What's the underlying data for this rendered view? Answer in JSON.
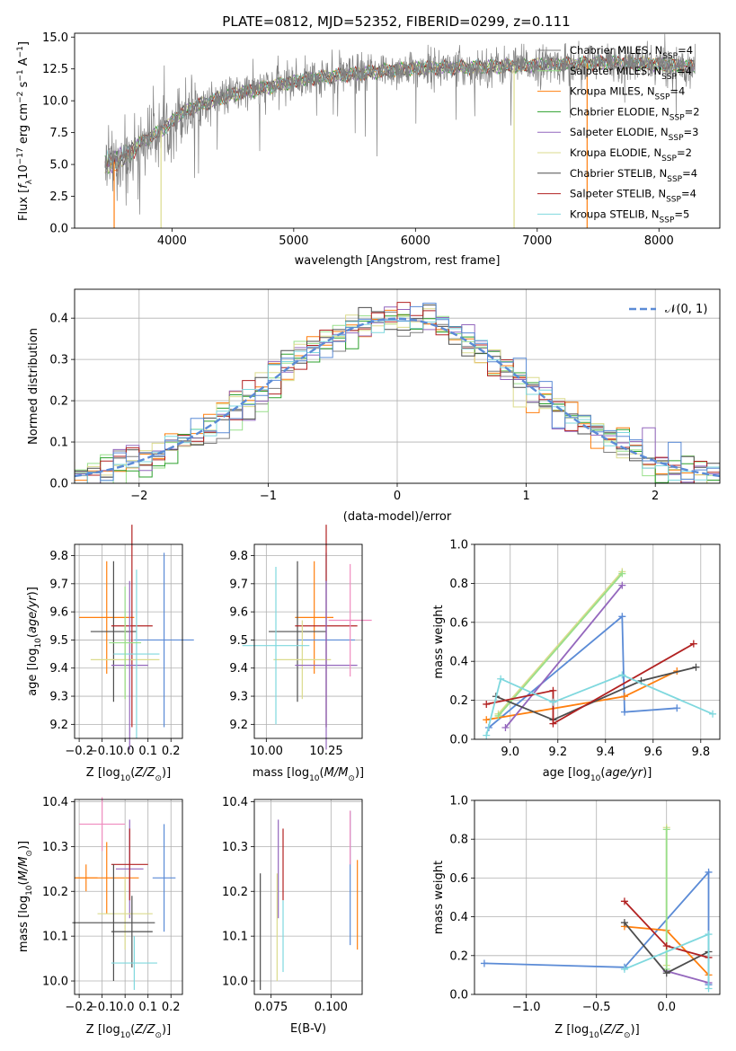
{
  "figure": {
    "title": "PLATE=0812, MJD=52352, FIBERID=0299, z=0.111"
  },
  "colors": {
    "chabrier_miles": "#7f7f7f",
    "salpeter_miles": "#98df8a",
    "kroupa_miles": "#ff7f0e",
    "chabrier_elodie": "#2ca02c",
    "salpeter_elodie": "#9467bd",
    "kroupa_elodie": "#dbdb8d",
    "chabrier_stelib": "#4d4d4d",
    "salpeter_stelib": "#b22222",
    "kroupa_stelib": "#7fd8de",
    "blue": "#5b8bd6",
    "pink": "#f08cbf",
    "normal": "#5b8bd6"
  },
  "chart_data": [
    {
      "id": "spectrum",
      "type": "line",
      "xlabel": "wavelength [Angstrom, rest frame]",
      "ylabel": "Flux [f_λ 10^-17 erg cm^-2 s^-1 A^-1]",
      "xlim": [
        3200,
        8500
      ],
      "ylim": [
        0,
        15.3
      ],
      "xticks": [
        4000,
        5000,
        6000,
        7000,
        8000
      ],
      "yticks": [
        0.0,
        2.5,
        5.0,
        7.5,
        10.0,
        12.5,
        15.0
      ],
      "grid": false,
      "legend_position": "top-right",
      "legend": [
        {
          "label": "Chabrier MILES, NSSP=4",
          "color": "#7f7f7f"
        },
        {
          "label": "Salpeter MILES, NSSP=4",
          "color": "#98df8a"
        },
        {
          "label": "Kroupa MILES, NSSP=4",
          "color": "#ff7f0e"
        },
        {
          "label": "Chabrier ELODIE, NSSP=2",
          "color": "#2ca02c"
        },
        {
          "label": "Salpeter ELODIE, NSSP=3",
          "color": "#9467bd"
        },
        {
          "label": "Kroupa ELODIE, NSSP=2",
          "color": "#dbdb8d"
        },
        {
          "label": "Chabrier STELIB, NSSP=4",
          "color": "#4d4d4d"
        },
        {
          "label": "Salpeter STELIB, NSSP=4",
          "color": "#b22222"
        },
        {
          "label": "Kroupa STELIB, NSSP=5",
          "color": "#7fd8de"
        }
      ],
      "continuum": {
        "x": [
          3450,
          3550,
          3650,
          3750,
          3850,
          3950,
          4050,
          4150,
          4300,
          4500,
          4700,
          4900,
          5100,
          5300,
          5500,
          5800,
          6100,
          6400,
          6700,
          7000,
          7300,
          7600,
          7900,
          8200
        ],
        "y": [
          4.9,
          5.3,
          5.8,
          6.8,
          7.3,
          7.9,
          8.8,
          9.4,
          9.9,
          10.5,
          10.9,
          11.3,
          11.7,
          11.9,
          12.1,
          12.4,
          12.6,
          12.6,
          12.7,
          12.8,
          12.9,
          13.0,
          12.9,
          12.7
        ]
      },
      "absorption_spikes": [
        {
          "x": 3525,
          "y": 0,
          "color": "#ff7f0e"
        },
        {
          "x": 3910,
          "y": 0,
          "color": "#dbdb8d"
        },
        {
          "x": 6810,
          "y": 0,
          "color": "#dbdb8d"
        },
        {
          "x": 7410,
          "y": 0,
          "color": "#ff7f0e"
        }
      ]
    },
    {
      "id": "residuals",
      "type": "histogram",
      "xlabel": "(data-model)/error",
      "ylabel": "Normed distribution",
      "xlim": [
        -2.5,
        2.5
      ],
      "ylim": [
        0,
        0.47
      ],
      "xticks": [
        -2,
        -1,
        0,
        1,
        2
      ],
      "yticks": [
        0.0,
        0.1,
        0.2,
        0.3,
        0.4
      ],
      "grid": true,
      "bin_width": 0.1,
      "legend_position": "top-right",
      "legend": [
        {
          "label": "𝒩(0, 1)",
          "color": "#5b8bd6",
          "style": "dashed"
        }
      ],
      "series_colors": [
        "#7f7f7f",
        "#98df8a",
        "#ff7f0e",
        "#2ca02c",
        "#9467bd",
        "#dbdb8d",
        "#4d4d4d",
        "#b22222",
        "#7fd8de",
        "#5b8bd6"
      ]
    },
    {
      "id": "age_vs_Z",
      "type": "errorbar",
      "xlabel": "Z [log10(Z/Z⊙)]",
      "ylabel": "age  [log10(age/yr)]",
      "xlim": [
        -0.22,
        0.25
      ],
      "ylim": [
        9.15,
        9.84
      ],
      "xticks": [
        -0.2,
        -0.1,
        0.0,
        0.1,
        0.2
      ],
      "yticks": [
        9.2,
        9.3,
        9.4,
        9.5,
        9.6,
        9.7,
        9.8
      ],
      "grid": true,
      "points": [
        {
          "x": -0.08,
          "xerr": 0.12,
          "y": 9.58,
          "yerr": 0.2,
          "color": "#ff7f0e"
        },
        {
          "x": 0.17,
          "xerr": 0.13,
          "y": 9.5,
          "yerr": 0.31,
          "color": "#5b8bd6"
        },
        {
          "x": -0.05,
          "xerr": 0.1,
          "y": 9.53,
          "yerr": 0.25,
          "color": "#4d4d4d"
        },
        {
          "x": 0.03,
          "xerr": 0.09,
          "y": 9.55,
          "yerr": 0.36,
          "color": "#b22222"
        },
        {
          "x": 0.0,
          "xerr": 0.15,
          "y": 9.43,
          "yerr": 0.14,
          "color": "#dbdb8d"
        },
        {
          "x": 0.02,
          "xerr": 0.08,
          "y": 9.41,
          "yerr": 0.3,
          "color": "#9467bd"
        },
        {
          "x": 0.05,
          "xerr": 0.1,
          "y": 9.45,
          "yerr": 0.3,
          "color": "#7fd8de"
        },
        {
          "x": 0.0,
          "xerr": 0.07,
          "y": 9.49,
          "yerr": 0.2,
          "color": "#98df8a"
        }
      ]
    },
    {
      "id": "age_vs_mass",
      "type": "errorbar",
      "xlabel": "mass [log10(M/M⊙)]",
      "ylabel": "",
      "xlim": [
        9.95,
        10.4
      ],
      "ylim": [
        9.15,
        9.84
      ],
      "xticks": [
        10.0,
        10.25
      ],
      "yticks": [
        9.2,
        9.3,
        9.4,
        9.5,
        9.6,
        9.7,
        9.8
      ],
      "grid": true,
      "points": [
        {
          "x": 10.2,
          "xerr": 0.08,
          "y": 9.58,
          "yerr": 0.2,
          "color": "#ff7f0e"
        },
        {
          "x": 10.25,
          "xerr": 0.12,
          "y": 9.5,
          "yerr": 0.31,
          "color": "#5b8bd6"
        },
        {
          "x": 10.13,
          "xerr": 0.12,
          "y": 9.53,
          "yerr": 0.25,
          "color": "#4d4d4d"
        },
        {
          "x": 10.25,
          "xerr": 0.13,
          "y": 9.55,
          "yerr": 0.36,
          "color": "#b22222"
        },
        {
          "x": 10.15,
          "xerr": 0.12,
          "y": 9.43,
          "yerr": 0.14,
          "color": "#dbdb8d"
        },
        {
          "x": 10.25,
          "xerr": 0.13,
          "y": 9.41,
          "yerr": 0.3,
          "color": "#9467bd"
        },
        {
          "x": 10.04,
          "xerr": 0.14,
          "y": 9.48,
          "yerr": 0.28,
          "color": "#7fd8de"
        },
        {
          "x": 10.35,
          "xerr": 0.09,
          "y": 9.57,
          "yerr": 0.2,
          "color": "#f08cbf"
        }
      ]
    },
    {
      "id": "weight_vs_age",
      "type": "line",
      "xlabel": "age  [log10(age/yr)]",
      "ylabel": "mass weight",
      "xlim": [
        8.85,
        9.88
      ],
      "ylim": [
        0,
        1.0
      ],
      "xticks": [
        9.0,
        9.2,
        9.4,
        9.6,
        9.8
      ],
      "yticks": [
        0.0,
        0.2,
        0.4,
        0.6,
        0.8,
        1.0
      ],
      "grid": true,
      "series": [
        {
          "color": "#5b8bd6",
          "x": [
            8.91,
            9.47,
            9.48,
            9.7
          ],
          "y": [
            0.06,
            0.63,
            0.14,
            0.16
          ]
        },
        {
          "color": "#ff7f0e",
          "x": [
            8.9,
            9.48,
            9.7
          ],
          "y": [
            0.1,
            0.22,
            0.35
          ]
        },
        {
          "color": "#9467bd",
          "x": [
            8.98,
            9.47
          ],
          "y": [
            0.06,
            0.79
          ]
        },
        {
          "color": "#dbdb8d",
          "x": [
            8.95,
            9.47
          ],
          "y": [
            0.13,
            0.86
          ]
        },
        {
          "color": "#98df8a",
          "x": [
            8.95,
            9.47
          ],
          "y": [
            0.12,
            0.85
          ]
        },
        {
          "color": "#4d4d4d",
          "x": [
            8.94,
            9.18,
            9.55,
            9.78
          ],
          "y": [
            0.22,
            0.1,
            0.3,
            0.37
          ]
        },
        {
          "color": "#b22222",
          "x": [
            8.9,
            9.18,
            9.18,
            9.77
          ],
          "y": [
            0.18,
            0.25,
            0.08,
            0.49
          ]
        },
        {
          "color": "#7fd8de",
          "x": [
            8.9,
            8.96,
            9.18,
            9.47,
            9.85
          ],
          "y": [
            0.02,
            0.31,
            0.19,
            0.33,
            0.13
          ]
        }
      ]
    },
    {
      "id": "mass_vs_Z",
      "type": "errorbar",
      "xlabel": "Z [log10(Z/Z⊙)]",
      "ylabel": "mass [log10(M/M⊙)]",
      "xlim": [
        -0.22,
        0.25
      ],
      "ylim": [
        9.97,
        10.405
      ],
      "xticks": [
        -0.2,
        -0.1,
        0.0,
        0.1,
        0.2
      ],
      "yticks": [
        10.0,
        10.1,
        10.2,
        10.3,
        10.4
      ],
      "grid": true,
      "points": [
        {
          "x": -0.17,
          "xerr": 0.05,
          "y": 10.23,
          "yerr": 0.03,
          "color": "#ff7f0e"
        },
        {
          "x": -0.08,
          "xerr": 0.14,
          "y": 10.23,
          "yerr": 0.08,
          "color": "#ff7f0e"
        },
        {
          "x": -0.1,
          "xerr": 0.1,
          "y": 10.35,
          "yerr": 0.06,
          "color": "#f08cbf"
        },
        {
          "x": 0.02,
          "xerr": 0.06,
          "y": 10.25,
          "yerr": 0.11,
          "color": "#9467bd"
        },
        {
          "x": 0.17,
          "xerr": 0.05,
          "y": 10.23,
          "yerr": 0.12,
          "color": "#5b8bd6"
        },
        {
          "x": 0.02,
          "xerr": 0.08,
          "y": 10.26,
          "yerr": 0.08,
          "color": "#b22222"
        },
        {
          "x": 0.0,
          "xerr": 0.12,
          "y": 10.15,
          "yerr": 0.08,
          "color": "#dbdb8d"
        },
        {
          "x": -0.05,
          "xerr": 0.18,
          "y": 10.13,
          "yerr": 0.13,
          "color": "#4d4d4d"
        },
        {
          "x": 0.03,
          "xerr": 0.09,
          "y": 10.11,
          "yerr": 0.08,
          "color": "#4d4d4d"
        },
        {
          "x": 0.04,
          "xerr": 0.1,
          "y": 10.04,
          "yerr": 0.06,
          "color": "#7fd8de"
        }
      ]
    },
    {
      "id": "mass_vs_ebv",
      "type": "errorbar",
      "xlabel": "E(B-V)",
      "ylabel": "",
      "xlim": [
        0.068,
        0.113
      ],
      "ylim": [
        9.97,
        10.405
      ],
      "xticks": [
        0.075,
        0.1
      ],
      "yticks": [
        10.0,
        10.1,
        10.2,
        10.3,
        10.4
      ],
      "grid": true,
      "points": [
        {
          "x": 0.0705,
          "y": 10.11,
          "yerr": 0.13,
          "color": "#4d4d4d"
        },
        {
          "x": 0.0775,
          "y": 10.12,
          "yerr": 0.12,
          "color": "#dbdb8d"
        },
        {
          "x": 0.078,
          "y": 10.25,
          "yerr": 0.11,
          "color": "#9467bd"
        },
        {
          "x": 0.08,
          "y": 10.26,
          "yerr": 0.08,
          "color": "#b22222"
        },
        {
          "x": 0.08,
          "y": 10.1,
          "yerr": 0.08,
          "color": "#7fd8de"
        },
        {
          "x": 0.108,
          "y": 10.23,
          "yerr": 0.15,
          "color": "#5b8bd6"
        },
        {
          "x": 0.108,
          "y": 10.32,
          "yerr": 0.06,
          "color": "#f08cbf"
        },
        {
          "x": 0.111,
          "y": 10.17,
          "yerr": 0.1,
          "color": "#ff7f0e"
        }
      ]
    },
    {
      "id": "weight_vs_Z",
      "type": "line",
      "xlabel": "Z [log10(Z/Z⊙)]",
      "ylabel": "mass weight",
      "xlim": [
        -1.37,
        0.38
      ],
      "ylim": [
        0,
        1.0
      ],
      "xticks": [
        -1.0,
        -0.5,
        0.0
      ],
      "yticks": [
        0.0,
        0.2,
        0.4,
        0.6,
        0.8,
        1.0
      ],
      "grid": true,
      "series": [
        {
          "color": "#5b8bd6",
          "x": [
            -1.3,
            -0.3,
            0.3,
            0.3
          ],
          "y": [
            0.16,
            0.14,
            0.63,
            0.05
          ]
        },
        {
          "color": "#ff7f0e",
          "x": [
            -0.3,
            0.0,
            0.3
          ],
          "y": [
            0.35,
            0.33,
            0.1
          ]
        },
        {
          "color": "#9467bd",
          "x": [
            0.0,
            0.3
          ],
          "y": [
            0.12,
            0.06
          ]
        },
        {
          "color": "#dbdb8d",
          "x": [
            0.0,
            0.0
          ],
          "y": [
            0.86,
            0.15
          ]
        },
        {
          "color": "#98df8a",
          "x": [
            0.0,
            0.0
          ],
          "y": [
            0.85,
            0.13
          ]
        },
        {
          "color": "#4d4d4d",
          "x": [
            -0.3,
            0.0,
            0.3
          ],
          "y": [
            0.37,
            0.11,
            0.22
          ]
        },
        {
          "color": "#b22222",
          "x": [
            -0.3,
            0.0,
            0.3
          ],
          "y": [
            0.48,
            0.25,
            0.19
          ]
        },
        {
          "color": "#7fd8de",
          "x": [
            -0.3,
            0.3,
            0.3
          ],
          "y": [
            0.13,
            0.31,
            0.03
          ]
        }
      ]
    }
  ]
}
